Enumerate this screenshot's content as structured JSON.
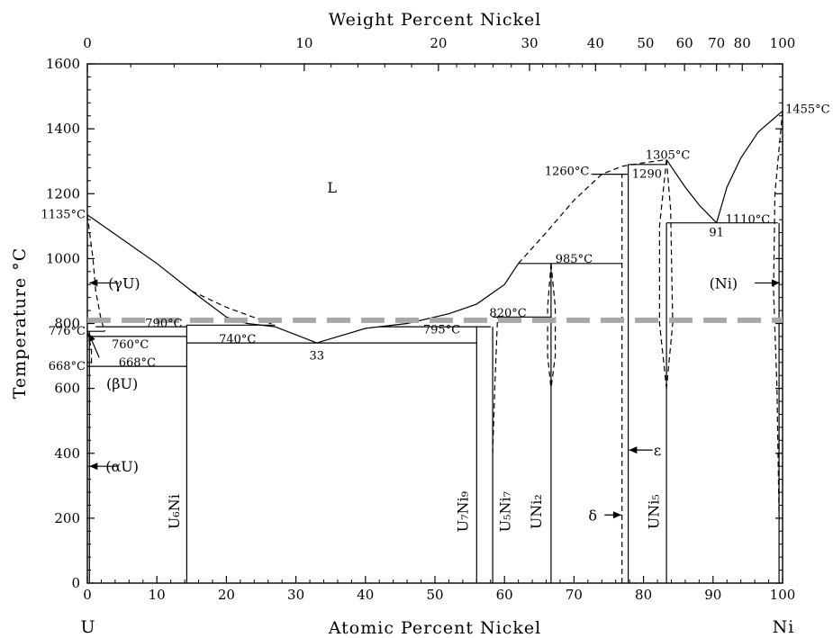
{
  "chart_data": {
    "type": "phase-diagram",
    "title": "",
    "xlabel": "Atomic Percent Nickel",
    "x2label": "Weight Percent Nickel",
    "ylabel": "Temperature °C",
    "xlim": [
      0,
      100
    ],
    "ylim": [
      0,
      1600
    ],
    "x_ticks": [
      "0",
      "10",
      "20",
      "30",
      "40",
      "50",
      "60",
      "70",
      "80",
      "90",
      "100"
    ],
    "x_tick_values": [
      0,
      10,
      20,
      30,
      40,
      50,
      60,
      70,
      80,
      90,
      100
    ],
    "y_ticks": [
      "0",
      "200",
      "400",
      "600",
      "800",
      "1000",
      "1200",
      "1400",
      "1600"
    ],
    "y_tick_values": [
      0,
      200,
      400,
      600,
      800,
      1000,
      1200,
      1400,
      1600
    ],
    "x2_ticks": [
      {
        "label": "0",
        "at_pct": 0
      },
      {
        "label": "10",
        "at_pct": 31.2
      },
      {
        "label": "20",
        "at_pct": 50.5
      },
      {
        "label": "30",
        "at_pct": 63.6
      },
      {
        "label": "40",
        "at_pct": 73.1
      },
      {
        "label": "50",
        "at_pct": 80.3
      },
      {
        "label": "60",
        "at_pct": 85.9
      },
      {
        "label": "70",
        "at_pct": 90.5
      },
      {
        "label": "80",
        "at_pct": 94.2
      },
      {
        "label": "100",
        "at_pct": 100
      }
    ],
    "end_labels": {
      "left": "U",
      "right": "Ni"
    },
    "reference_line": {
      "temperature": 810,
      "color": "#a8a8a8",
      "style": "dashed"
    },
    "solid_lines": [
      {
        "name": "liquidus-U-rich",
        "points": [
          [
            0,
            1135
          ],
          [
            5,
            1060
          ],
          [
            10,
            985
          ],
          [
            15,
            900
          ],
          [
            20,
            820
          ],
          [
            23,
            800
          ],
          [
            27,
            790
          ],
          [
            33,
            740
          ]
        ]
      },
      {
        "name": "liquidus-eutectic-rise",
        "points": [
          [
            33,
            740
          ],
          [
            40,
            785
          ],
          [
            46,
            800
          ],
          [
            52,
            830
          ],
          [
            56,
            860
          ],
          [
            60,
            920
          ],
          [
            62,
            985
          ]
        ]
      },
      {
        "name": "liquidus-UNi5",
        "points": [
          [
            83.3,
            1305
          ],
          [
            86,
            1220
          ],
          [
            88,
            1165
          ],
          [
            90.5,
            1110
          ]
        ]
      },
      {
        "name": "liquidus-Ni",
        "points": [
          [
            90.5,
            1110
          ],
          [
            92,
            1220
          ],
          [
            94,
            1310
          ],
          [
            96.5,
            1390
          ],
          [
            100,
            1455
          ]
        ]
      },
      {
        "name": "eutectic-790",
        "points": [
          [
            1.2,
            790
          ],
          [
            14.3,
            790
          ]
        ]
      },
      {
        "name": "eutectic-740",
        "points": [
          [
            14.3,
            740
          ],
          [
            56,
            740
          ]
        ]
      },
      {
        "name": "peritectic-795",
        "points": [
          [
            14.3,
            795
          ],
          [
            27,
            795
          ]
        ]
      },
      {
        "name": "peritectic-790-right",
        "points": [
          [
            42,
            790
          ],
          [
            58,
            790
          ]
        ]
      },
      {
        "name": "peritectic-820",
        "points": [
          [
            58.3,
            820
          ],
          [
            66.7,
            820
          ]
        ]
      },
      {
        "name": "peritectic-985",
        "points": [
          [
            62,
            985
          ],
          [
            76.9,
            985
          ]
        ]
      },
      {
        "name": "peritectic-1260",
        "points": [
          [
            72.5,
            1260
          ],
          [
            77.8,
            1260
          ]
        ]
      },
      {
        "name": "eutectic-1290",
        "points": [
          [
            77.8,
            1290
          ],
          [
            83.3,
            1290
          ]
        ]
      },
      {
        "name": "eutectic-1110",
        "points": [
          [
            83.3,
            1110
          ],
          [
            99.3,
            1110
          ]
        ]
      },
      {
        "name": "beta-gamma-776",
        "points": [
          [
            0,
            776
          ],
          [
            2.5,
            776
          ]
        ]
      },
      {
        "name": "alpha-beta-668",
        "points": [
          [
            0,
            668
          ],
          [
            14.3,
            668
          ]
        ]
      },
      {
        "name": "beta-760",
        "points": [
          [
            0.3,
            760
          ],
          [
            14.3,
            760
          ]
        ]
      },
      {
        "name": "U6Ni-line",
        "points": [
          [
            14.3,
            0
          ],
          [
            14.3,
            795
          ]
        ]
      },
      {
        "name": "U7Ni9-line",
        "points": [
          [
            56,
            0
          ],
          [
            56,
            790
          ]
        ]
      },
      {
        "name": "U5Ni7-line",
        "points": [
          [
            58.3,
            0
          ],
          [
            58.3,
            790
          ]
        ]
      },
      {
        "name": "UNi2-line",
        "points": [
          [
            66.7,
            0
          ],
          [
            66.7,
            985
          ]
        ]
      },
      {
        "name": "UNi5-left",
        "points": [
          [
            77.8,
            0
          ],
          [
            77.8,
            1290
          ]
        ]
      },
      {
        "name": "UNi5-right",
        "points": [
          [
            83.3,
            0
          ],
          [
            83.3,
            1110
          ]
        ]
      },
      {
        "name": "U-axis-line",
        "points": [
          [
            0.3,
            0
          ],
          [
            0.3,
            776
          ]
        ]
      },
      {
        "name": "Ni-solvus",
        "points": [
          [
            99.5,
            0
          ],
          [
            99.5,
            1110
          ]
        ]
      }
    ],
    "dashed_lines": [
      {
        "name": "gamma-solvus",
        "points": [
          [
            0,
            1135
          ],
          [
            0.8,
            1000
          ],
          [
            1.2,
            900
          ],
          [
            2,
            810
          ],
          [
            2.5,
            776
          ]
        ]
      },
      {
        "name": "gamma-solidus-low",
        "points": [
          [
            0,
            776
          ],
          [
            0.6,
            720
          ],
          [
            0.6,
            668
          ]
        ]
      },
      {
        "name": "liquidus-dashed-U6Ni",
        "points": [
          [
            15,
            900
          ],
          [
            20,
            850
          ],
          [
            27,
            795
          ]
        ]
      },
      {
        "name": "liquidus-dashed-high",
        "points": [
          [
            62,
            985
          ],
          [
            66,
            1080
          ],
          [
            70,
            1180
          ],
          [
            74,
            1260
          ],
          [
            77,
            1285
          ],
          [
            80,
            1295
          ],
          [
            83.3,
            1305
          ]
        ]
      },
      {
        "name": "UNi2-solvus-left",
        "points": [
          [
            66.7,
            985
          ],
          [
            66.2,
            850
          ],
          [
            66.2,
            700
          ],
          [
            66.7,
            600
          ]
        ]
      },
      {
        "name": "UNi2-solvus-right",
        "points": [
          [
            66.7,
            985
          ],
          [
            67.3,
            850
          ],
          [
            67.3,
            700
          ],
          [
            66.7,
            600
          ]
        ]
      },
      {
        "name": "delta-line",
        "points": [
          [
            76.9,
            0
          ],
          [
            76.9,
            1260
          ]
        ]
      },
      {
        "name": "U5Ni7-solvus",
        "points": [
          [
            58.3,
            400
          ],
          [
            58.6,
            600
          ],
          [
            59,
            820
          ]
        ]
      },
      {
        "name": "UNi5-solvus-left",
        "points": [
          [
            83.3,
            1305
          ],
          [
            82.3,
            1100
          ],
          [
            82.3,
            800
          ],
          [
            83.3,
            600
          ]
        ]
      },
      {
        "name": "UNi5-solvus-right",
        "points": [
          [
            83.3,
            1305
          ],
          [
            83.9,
            1150
          ],
          [
            84.2,
            800
          ],
          [
            83.3,
            600
          ]
        ]
      },
      {
        "name": "Ni-solvus-dashed",
        "points": [
          [
            100,
            1455
          ],
          [
            98.9,
            1200
          ],
          [
            98.7,
            900
          ],
          [
            99.2,
            600
          ],
          [
            99.5,
            200
          ]
        ]
      }
    ],
    "annotations": [
      {
        "text": "1135°C",
        "x": 0,
        "y": 1135,
        "anchor": "end"
      },
      {
        "text": "776°C",
        "x": 0,
        "y": 776,
        "anchor": "end"
      },
      {
        "text": "668°C",
        "x": 0,
        "y": 668,
        "anchor": "end"
      },
      {
        "text": "790°C",
        "x": 11,
        "y": 800,
        "anchor": "middle"
      },
      {
        "text": "760°C",
        "x": 3.5,
        "y": 735,
        "anchor": "start"
      },
      {
        "text": "668°C",
        "x": 4.5,
        "y": 680,
        "anchor": "start"
      },
      {
        "text": "740°C",
        "x": 21.6,
        "y": 752,
        "anchor": "middle"
      },
      {
        "text": "33",
        "x": 33,
        "y": 700,
        "anchor": "middle"
      },
      {
        "text": "795°C",
        "x": 48.3,
        "y": 780,
        "anchor": "start"
      },
      {
        "text": "820°C",
        "x": 60.5,
        "y": 832,
        "anchor": "middle"
      },
      {
        "text": "985°C",
        "x": 70,
        "y": 998,
        "anchor": "middle"
      },
      {
        "text": "1260°C",
        "x": 72.2,
        "y": 1268,
        "anchor": "end"
      },
      {
        "text": "1290",
        "x": 80.5,
        "y": 1260,
        "anchor": "middle"
      },
      {
        "text": "1305°C",
        "x": 83.5,
        "y": 1318,
        "anchor": "middle"
      },
      {
        "text": "1110°C",
        "x": 95,
        "y": 1120,
        "anchor": "middle"
      },
      {
        "text": "91",
        "x": 90.5,
        "y": 1080,
        "anchor": "middle"
      },
      {
        "text": "1455°C",
        "x": 100.4,
        "y": 1460,
        "anchor": "start"
      }
    ],
    "phase_labels": [
      {
        "text": "L",
        "x": 35.2,
        "y": 1220,
        "size": 26
      },
      {
        "text": "(γU)",
        "x": 5.3,
        "y": 925,
        "size": 17
      },
      {
        "text": "(βU)",
        "x": 5,
        "y": 615,
        "size": 17
      },
      {
        "text": "(αU)",
        "x": 5,
        "y": 360,
        "size": 17
      },
      {
        "text": "(Ni)",
        "x": 91.5,
        "y": 925,
        "size": 17
      },
      {
        "text": "δ",
        "x": 72.7,
        "y": 210,
        "size": 17
      },
      {
        "text": "ε",
        "x": 82,
        "y": 410,
        "size": 17
      }
    ],
    "compound_labels": [
      {
        "text": "U₆Ni",
        "x": 13.2,
        "y": 220
      },
      {
        "text": "U₇Ni₉",
        "x": 54.7,
        "y": 220
      },
      {
        "text": "U₅Ni₇",
        "x": 60.8,
        "y": 220
      },
      {
        "text": "UNi₂",
        "x": 65.3,
        "y": 220
      },
      {
        "text": "UNi₅",
        "x": 82.2,
        "y": 220
      }
    ],
    "arrows": [
      {
        "from": [
          4.5,
          925
        ],
        "to": [
          0.3,
          925
        ]
      },
      {
        "from": [
          4.4,
          360
        ],
        "to": [
          0.3,
          360
        ]
      },
      {
        "from": [
          1.7,
          695
        ],
        "to": [
          0.2,
          770
        ]
      },
      {
        "from": [
          96,
          925
        ],
        "to": [
          99.6,
          925
        ]
      },
      {
        "from": [
          74.4,
          210
        ],
        "to": [
          76.8,
          210
        ]
      },
      {
        "from": [
          81.3,
          410
        ],
        "to": [
          77.9,
          410
        ]
      }
    ]
  }
}
